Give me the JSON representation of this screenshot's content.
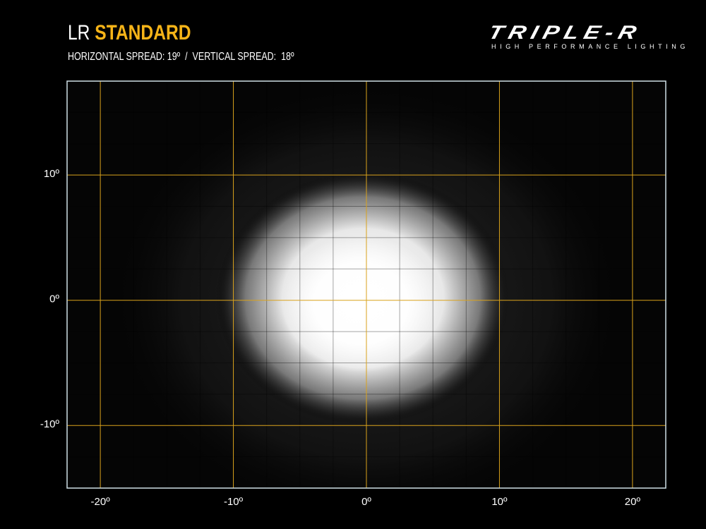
{
  "header": {
    "title_prefix": "LR",
    "title_accent": "STANDARD",
    "subtitle": "HORIZONTAL SPREAD: 19º  /  VERTICAL SPREAD:  18º"
  },
  "logo": {
    "brand": "TRIPLE-R",
    "tagline": "HIGH PERFORMANCE LIGHTING"
  },
  "colors": {
    "accent": "#f6b418",
    "major_grid": "#d9a21c",
    "border": "#cfe0e6",
    "background": "#000000"
  },
  "chart_data": {
    "type": "heatmap",
    "description_kind": "beam-pattern",
    "horizontal_spread_deg": 19,
    "vertical_spread_deg": 18,
    "xlim": [
      -22.5,
      22.5
    ],
    "ylim": [
      -15,
      17.5
    ],
    "x_ticks": [
      -20,
      -10,
      0,
      10,
      20
    ],
    "y_ticks": [
      -10,
      0,
      10
    ],
    "x_tick_labels": [
      "-20º",
      "-10º",
      "0º",
      "10º",
      "20º"
    ],
    "y_tick_labels": [
      "-10º",
      "0º",
      "10º"
    ],
    "minor_grid_step_deg": 2.5,
    "grid": true,
    "beam_center_deg": [
      0,
      0
    ]
  }
}
